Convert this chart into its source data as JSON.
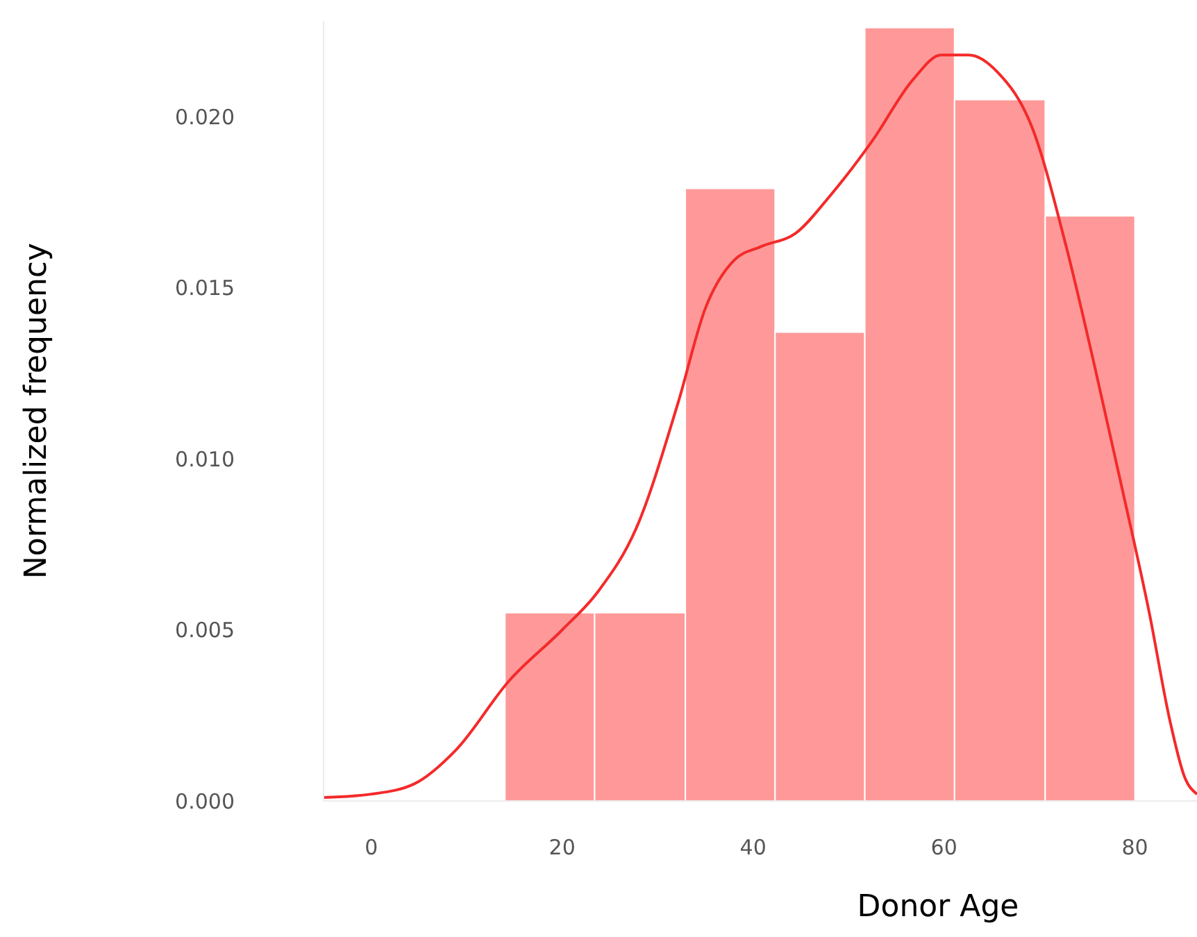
{
  "chart_data": {
    "type": "histogram",
    "xlabel": "Donor Age",
    "ylabel": "Normalized  frequency",
    "bins": [
      14,
      23.4,
      32.9,
      42.3,
      51.7,
      61.1,
      70.6,
      80
    ],
    "values": [
      0.0055,
      0.0055,
      0.0179,
      0.0137,
      0.0226,
      0.0205,
      0.0171
    ],
    "color": "#ff9999",
    "series": [
      {
        "type": "line",
        "color": "#f42a2a",
        "x": [
          -5,
          0,
          4.5,
          8.9,
          14.4,
          20,
          23.7,
          27.8,
          32.1,
          35,
          38,
          40.8,
          44.5,
          48.1,
          52.5,
          56.8,
          59.7,
          62.6,
          65.6,
          69.2,
          72.8,
          75.7,
          78.6,
          81.5,
          83.7,
          85.2,
          86.5
        ],
        "values": [
          0.0001,
          0.0002,
          0.0005,
          0.0015,
          0.0035,
          0.005,
          0.0061,
          0.008,
          0.0116,
          0.0144,
          0.0158,
          0.0162,
          0.0166,
          0.0177,
          0.0193,
          0.0211,
          0.0218,
          0.0218,
          0.0213,
          0.0197,
          0.0162,
          0.0128,
          0.0092,
          0.0055,
          0.0023,
          0.0007,
          0.0002
        ]
      }
    ],
    "xlim": [
      -5,
      86.5
    ],
    "xticks": [
      0,
      20,
      40,
      60,
      80
    ],
    "ylim": [
      0,
      0.0228
    ],
    "yticks": [
      {
        "value": 0,
        "label": "0.000"
      },
      {
        "value": 0.005,
        "label": "0.005"
      },
      {
        "value": 0.01,
        "label": "0.010"
      },
      {
        "value": 0.015,
        "label": "0.015"
      },
      {
        "value": 0.02,
        "label": "0.020"
      }
    ],
    "grid": false
  }
}
